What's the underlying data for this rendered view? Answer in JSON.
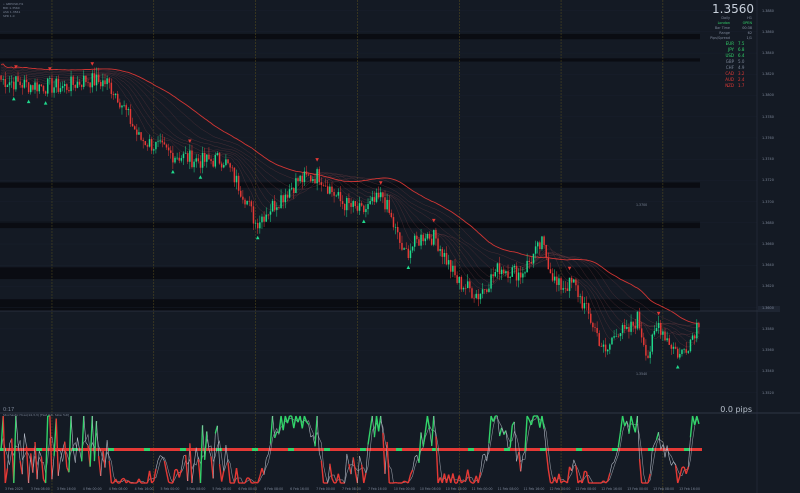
{
  "symbol_header": {
    "lines": [
      "• GBPUSD,H1",
      "BID 1.3560",
      "ASK 1.3561",
      "SPR 1.0"
    ]
  },
  "price": "1.3560",
  "market_info": [
    {
      "label": "Daily",
      "value": "H1"
    },
    {
      "label": "London",
      "value": "OPEN"
    },
    {
      "label": "Bar Time",
      "value": "00:38"
    },
    {
      "label": "Range",
      "value": "62"
    },
    {
      "label": "Pips/Spread",
      "value": "1/1"
    },
    {
      "label": "ADR(5)",
      "value": "94"
    },
    {
      "label": "ADR(20)",
      "value": "105"
    }
  ],
  "currency_strength": [
    {
      "currency": "EUR",
      "value": "7.5",
      "color": "#32d46a"
    },
    {
      "currency": "JPY",
      "value": "6.8",
      "color": "#32d46a"
    },
    {
      "currency": "USD",
      "value": "6.4",
      "color": "#32d46a"
    },
    {
      "currency": "GBP",
      "value": "5.0",
      "color": "#7d8799"
    },
    {
      "currency": "CHF",
      "value": "4.9",
      "color": "#7d8799"
    },
    {
      "currency": "CAD",
      "value": "3.2",
      "color": "#e53935"
    },
    {
      "currency": "AUD",
      "value": "2.4",
      "color": "#e53935"
    },
    {
      "currency": "NZD",
      "value": "1.7",
      "color": "#e53935"
    }
  ],
  "pips_display": "0.0 pips",
  "bar_counter": "0:17",
  "oscillator_label": "Stochastic Hi-Lo(14,3,3) [Fast %K, Slow %D]",
  "price_axis": [
    "1.3880",
    "1.3860",
    "1.3840",
    "1.3820",
    "1.3800",
    "1.3780",
    "1.3760",
    "1.3740",
    "1.3720",
    "1.3700",
    "1.3680",
    "1.3660",
    "1.3640",
    "1.3620",
    "1.3600",
    "1.3580",
    "1.3560",
    "1.3540",
    "1.3520"
  ],
  "time_axis": [
    "3 Feb 2025",
    "3 Feb 08:00",
    "3 Feb 16:00",
    "4 Feb 00:00",
    "4 Feb 08:00",
    "4 Feb 16:00",
    "5 Feb 00:00",
    "5 Feb 08:00",
    "5 Feb 16:00",
    "6 Feb 00:00",
    "6 Feb 08:00",
    "6 Feb 16:00",
    "7 Feb 00:00",
    "7 Feb 08:00",
    "7 Feb 16:00",
    "10 Feb 00:00",
    "10 Feb 08:00",
    "10 Feb 16:00",
    "11 Feb 00:00",
    "11 Feb 08:00",
    "11 Feb 16:00",
    "12 Feb 00:00",
    "12 Feb 08:00",
    "12 Feb 16:00",
    "13 Feb 00:00",
    "13 Feb 08:00",
    "13 Feb 16:00"
  ],
  "level_labels": [
    {
      "text": "1.3700",
      "price": 1.37
    },
    {
      "text": "1.3540",
      "price": 1.354
    }
  ],
  "colors": {
    "background": "#141a24",
    "bull_candle": "#1fd98c",
    "bear_candle": "#e53935",
    "ma_ribbon": "#e53935",
    "osc_bull": "#32d46a",
    "osc_bear": "#e53935",
    "osc_signal": "#c0c6d0",
    "zone": "#090c12",
    "session_line": "#6a5d1e"
  },
  "chart_data": {
    "type": "candlestick",
    "ylim": [
      1.3513,
      1.389
    ],
    "n_bars": 330,
    "approx_close_path": [
      [
        0,
        1.3815
      ],
      [
        12,
        1.381
      ],
      [
        30,
        1.3808
      ],
      [
        40,
        1.3815
      ],
      [
        50,
        1.3812
      ],
      [
        55,
        1.38
      ],
      [
        65,
        1.376
      ],
      [
        80,
        1.3745
      ],
      [
        95,
        1.3738
      ],
      [
        105,
        1.374
      ],
      [
        115,
        1.3705
      ],
      [
        120,
        1.368
      ],
      [
        130,
        1.37
      ],
      [
        140,
        1.372
      ],
      [
        150,
        1.3725
      ],
      [
        160,
        1.37
      ],
      [
        170,
        1.369
      ],
      [
        180,
        1.3705
      ],
      [
        190,
        1.365
      ],
      [
        200,
        1.367
      ],
      [
        205,
        1.3665
      ],
      [
        215,
        1.3625
      ],
      [
        225,
        1.3612
      ],
      [
        235,
        1.3638
      ],
      [
        245,
        1.3632
      ],
      [
        255,
        1.366
      ],
      [
        262,
        1.362
      ],
      [
        270,
        1.3622
      ],
      [
        280,
        1.358
      ],
      [
        285,
        1.3555
      ],
      [
        290,
        1.358
      ],
      [
        295,
        1.3575
      ],
      [
        300,
        1.359
      ],
      [
        305,
        1.3555
      ],
      [
        310,
        1.3585
      ],
      [
        315,
        1.3568
      ],
      [
        320,
        1.3555
      ],
      [
        325,
        1.357
      ],
      [
        329,
        1.3588
      ]
    ],
    "supply_zones": [
      {
        "from": 1.3858,
        "to": 1.3853
      },
      {
        "from": 1.3835,
        "to": 1.3832
      },
      {
        "from": 1.3718,
        "to": 1.3713
      },
      {
        "from": 1.3681,
        "to": 1.3675
      },
      {
        "from": 1.3638,
        "to": 1.3627
      },
      {
        "from": 1.3608,
        "to": 1.3597
      }
    ],
    "oscillator": {
      "ylim": [
        0,
        100
      ],
      "midline": 50
    }
  }
}
